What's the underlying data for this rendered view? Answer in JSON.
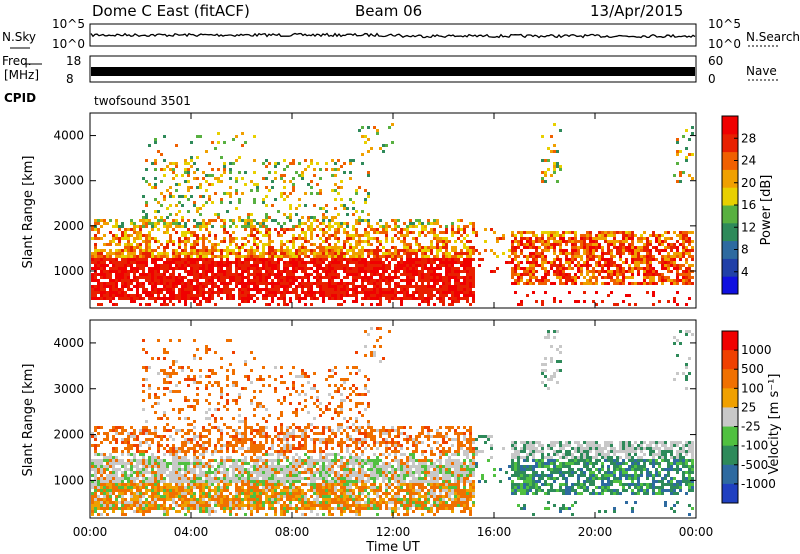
{
  "header": {
    "title": "Dome C East (fitACF)",
    "beam": "Beam 06",
    "date": "13/Apr/2015"
  },
  "status_panels": {
    "nsky": {
      "label": "N.Sky",
      "ticks": [
        "10^5",
        "10^0"
      ]
    },
    "nsearch": {
      "label": "N.Search",
      "ticks": [
        "10^5",
        "10^0"
      ]
    },
    "freq": {
      "label": "Freq.",
      "unit": "[MHz]",
      "ticks": [
        "18",
        "8"
      ]
    },
    "nave": {
      "label": "Nave",
      "ticks": [
        "60",
        "0"
      ]
    },
    "cpid": {
      "label": "CPID",
      "value": "twofsound 3501"
    }
  },
  "colors": {
    "power": [
      "#1010e0",
      "#2040a8",
      "#2e6aa0",
      "#2e8a5a",
      "#58b040",
      "#e8d000",
      "#f0a000",
      "#f06000",
      "#e82000",
      "#f00000"
    ],
    "velocity": [
      "#f00000",
      "#f04000",
      "#f07000",
      "#f0a000",
      "#c8c8c8",
      "#50c040",
      "#2e8a5a",
      "#2e6aa0",
      "#2040c0"
    ]
  },
  "chart_data": [
    {
      "type": "heatmap",
      "name": "power",
      "ylabel": "Slant Range [km]",
      "yticks": [
        "1000",
        "2000",
        "3000",
        "4000"
      ],
      "xticks": [
        "00:00",
        "04:00",
        "08:00",
        "12:00",
        "16:00",
        "20:00",
        "00:00"
      ],
      "ylim": [
        180,
        4500
      ],
      "colorbar": {
        "label": "Power [dB]",
        "ticks": [
          "4",
          "8",
          "12",
          "16",
          "20",
          "24",
          "28"
        ],
        "range": [
          0,
          30
        ]
      }
    },
    {
      "type": "heatmap",
      "name": "velocity",
      "ylabel": "Slant Range [km]",
      "yticks": [
        "1000",
        "2000",
        "3000",
        "4000"
      ],
      "xticks": [
        "00:00",
        "04:00",
        "08:00",
        "12:00",
        "16:00",
        "20:00",
        "00:00"
      ],
      "xlabel": "Time UT",
      "ylim": [
        180,
        4500
      ],
      "colorbar": {
        "label": "Velocity [m s⁻¹]",
        "ticks": [
          "1000",
          "500",
          "100",
          "25",
          "-25",
          "-100",
          "-500",
          "-1000"
        ]
      }
    }
  ]
}
